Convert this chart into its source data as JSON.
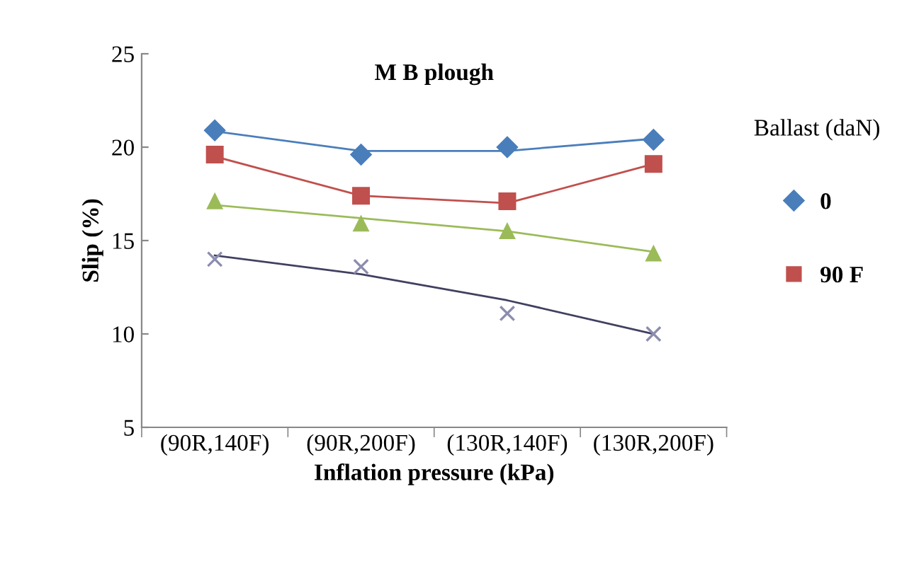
{
  "chart_data": {
    "type": "scatter",
    "title": "M B plough",
    "xlabel": "Inflation pressure (kPa)",
    "ylabel": "Slip (%)",
    "legend_title": "Ballast (daN)",
    "categories": [
      "(90R,140F)",
      "(90R,200F)",
      "(130R,140F)",
      "(130R,200F)"
    ],
    "ylim": [
      5,
      25
    ],
    "yticks": [
      5,
      10,
      15,
      20,
      25
    ],
    "grid": false,
    "legend": "right",
    "series": [
      {
        "name": "0",
        "color": "#4a7ebb",
        "marker": "diamond",
        "values": [
          20.9,
          19.6,
          20.0,
          20.4
        ]
      },
      {
        "name": "90 F",
        "color": "#c0504d",
        "marker": "square",
        "values": [
          19.6,
          17.4,
          17.1,
          19.1
        ]
      },
      {
        "color": "#9bbb59",
        "marker": "triangle",
        "values": [
          17.1,
          15.9,
          15.5,
          14.3
        ]
      },
      {
        "color": "#8c8cb0",
        "marker": "cross",
        "values": [
          14.0,
          13.6,
          11.1,
          10.0
        ]
      },
      {
        "type": "line",
        "color": "#4a7ebb",
        "marker": "none",
        "values": [
          20.85,
          19.8,
          19.8,
          20.45
        ]
      },
      {
        "type": "line",
        "color": "#c0504d",
        "marker": "none",
        "values": [
          19.5,
          17.4,
          17.0,
          19.1
        ]
      },
      {
        "type": "line",
        "color": "#9bbb59",
        "marker": "none",
        "values": [
          16.9,
          16.2,
          15.5,
          14.4
        ]
      },
      {
        "type": "line",
        "color": "#404060",
        "marker": "none",
        "values": [
          14.2,
          13.2,
          11.8,
          10.0
        ]
      }
    ]
  }
}
